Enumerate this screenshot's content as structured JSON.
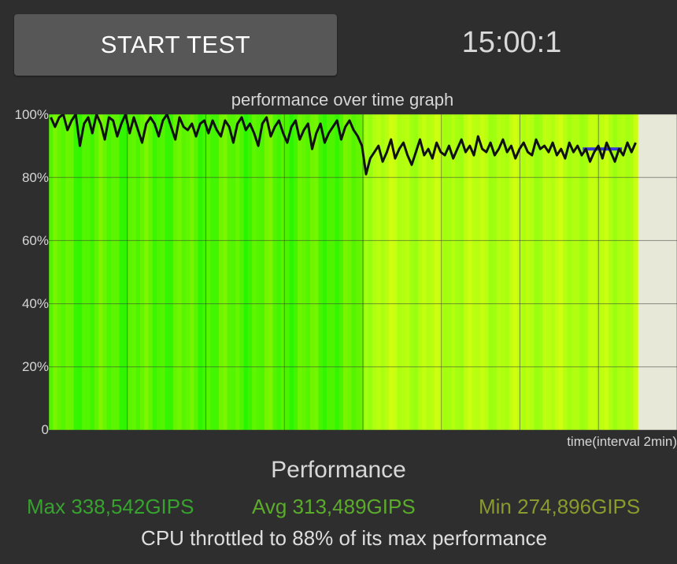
{
  "toolbar": {
    "start_label": "START TEST",
    "timer": "15:00:1"
  },
  "graph": {
    "title": "performance over time graph",
    "x_label": "time(interval 2min)",
    "y_ticks": [
      "100%",
      "80%",
      "60%",
      "40%",
      "20%",
      "0"
    ]
  },
  "performance": {
    "heading": "Performance",
    "max": "Max 338,542GIPS",
    "avg": "Avg 313,489GIPS",
    "min": "Min 274,896GIPS",
    "summary": "CPU throttled to 88% of its max performance"
  },
  "colors": {
    "background": "#2e2e2e",
    "button": "#575757",
    "plot_background": "#e8e8d8",
    "bar_green": "#39f500",
    "bar_yellow": "#b8ff10",
    "line": "#111111",
    "avg_line": "#3a3ad8",
    "max_text": "#37a32e",
    "avg_text": "#5aac2a",
    "min_text": "#8a9a2c"
  },
  "chart_data": {
    "type": "line",
    "title": "performance over time graph",
    "xlabel": "time(interval 2min)",
    "ylabel": "",
    "ylim": [
      0,
      100
    ],
    "x_total_min": 15,
    "x_range_min": [
      0,
      16
    ],
    "grid": true,
    "series": [
      {
        "values": [
          99,
          96,
          99,
          100,
          95,
          98,
          100,
          90,
          97,
          99,
          94,
          100,
          97,
          92,
          99,
          98,
          93,
          97,
          100,
          94,
          99,
          95,
          91,
          97,
          99,
          97,
          93,
          98,
          100,
          96,
          92,
          99,
          96,
          95,
          97,
          93,
          97,
          98,
          94,
          98,
          95,
          93,
          98,
          96,
          91,
          97,
          99,
          95,
          97,
          94,
          90,
          97,
          99,
          93,
          96,
          98,
          94,
          91,
          96,
          98,
          92,
          95,
          97,
          89,
          94,
          97,
          91,
          94,
          96,
          98,
          92,
          96,
          98,
          95,
          93,
          90,
          81,
          86,
          88,
          90,
          85,
          88,
          92,
          86,
          89,
          91,
          87,
          84,
          88,
          92,
          87,
          89,
          86,
          91,
          88,
          87,
          90,
          86,
          89,
          92,
          88,
          90,
          87,
          93,
          89,
          88,
          91,
          87,
          89,
          92,
          88,
          90,
          86,
          89,
          91,
          88,
          87,
          92,
          89,
          90,
          88,
          91,
          87,
          89,
          86,
          91,
          88,
          90,
          87,
          89,
          85,
          88,
          90,
          86,
          91,
          88,
          85,
          89,
          87,
          91,
          88,
          91
        ]
      }
    ],
    "avg_marker": {
      "value": 89,
      "x_start_min": 13.6,
      "x_end_min": 14.6
    },
    "color_transition_min": 8
  }
}
